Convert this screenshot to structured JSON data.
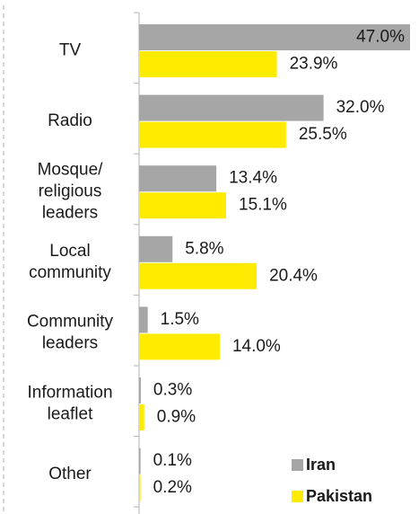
{
  "chart_data": {
    "type": "bar",
    "orientation": "horizontal",
    "categories": [
      [
        "TV"
      ],
      [
        "Radio"
      ],
      [
        "Mosque/",
        "religious",
        "leaders"
      ],
      [
        "Local",
        "community"
      ],
      [
        "Community",
        "leaders"
      ],
      [
        "Information",
        "leaflet"
      ],
      [
        "Other"
      ]
    ],
    "series": [
      {
        "name": "Iran",
        "color": "#a6a6a6",
        "values": [
          47.0,
          32.0,
          13.4,
          5.8,
          1.5,
          0.3,
          0.1
        ],
        "labels": [
          "47.0%",
          "32.0%",
          "13.4%",
          "5.8%",
          "1.5%",
          "0.3%",
          "0.1%"
        ]
      },
      {
        "name": "Pakistan",
        "color": "#ffeb00",
        "values": [
          23.9,
          25.5,
          15.1,
          20.4,
          14.0,
          0.9,
          0.2
        ],
        "labels": [
          "23.9%",
          "25.5%",
          "15.1%",
          "20.4%",
          "14.0%",
          "0.9%",
          "0.2%"
        ]
      }
    ],
    "xlim": [
      0,
      47.0
    ],
    "grid": false,
    "legend": "bottom-right"
  }
}
